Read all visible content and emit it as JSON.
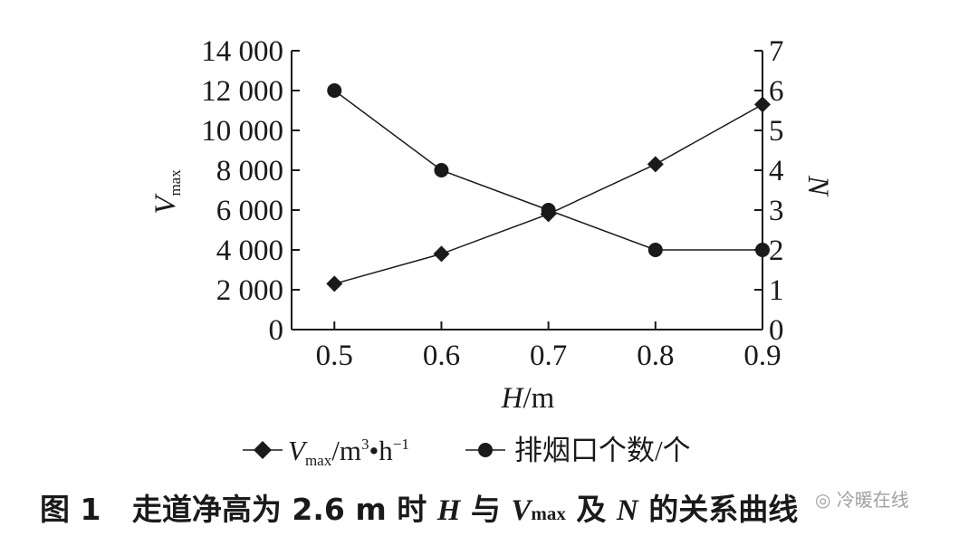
{
  "chart_data": {
    "type": "line",
    "x": [
      0.5,
      0.6,
      0.7,
      0.8,
      0.9
    ],
    "xlim": [
      0.46,
      0.9
    ],
    "xticks": [
      "0.5",
      "0.6",
      "0.7",
      "0.8",
      "0.9"
    ],
    "xlabel": "H/m",
    "ylim_left": [
      0,
      14000
    ],
    "yticks_left": [
      "0",
      "2 000",
      "4 000",
      "6 000",
      "8 000",
      "10 000",
      "12 000",
      "14 000"
    ],
    "ylabel_left": "Vmax",
    "ylim_right": [
      0,
      7
    ],
    "yticks_right": [
      "0",
      "1",
      "2",
      "3",
      "4",
      "5",
      "6",
      "7"
    ],
    "ylabel_right": "N",
    "series": [
      {
        "name": "Vmax/m3·h−1",
        "axis": "left",
        "marker": "diamond",
        "values": [
          2300,
          3800,
          5800,
          8300,
          11300
        ]
      },
      {
        "name": "排烟口个数/个",
        "axis": "right",
        "marker": "circle",
        "values": [
          6,
          4,
          3,
          2,
          2
        ]
      }
    ],
    "grid": false,
    "legend_position": "bottom",
    "colors": {
      "line": "#1a1a1a",
      "marker": "#1a1a1a"
    }
  },
  "caption": {
    "fig_num": "图 1",
    "text1": "走道净高为 2.6 m 时",
    "h": "H",
    "yu": "与",
    "v": "V",
    "vsub": "max",
    "ji": "及",
    "n": "N",
    "text2": "的关系曲线"
  },
  "watermark": "冷暖在线"
}
